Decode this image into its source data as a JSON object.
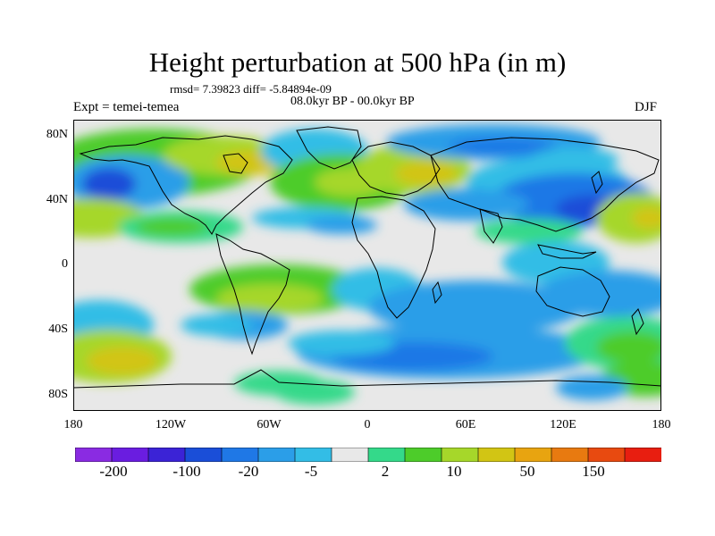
{
  "title": "Height perturbation at 500 hPa (in m)",
  "stats": "rmsd= 7.39823 diff= -5.84894e-09",
  "period": "08.0kyr BP - 00.0kyr BP",
  "expt": "Expt = temei-temea",
  "season": "DJF",
  "lat_ticks": [
    "80N",
    "40N",
    "0",
    "40S",
    "80S"
  ],
  "lon_ticks": [
    "180",
    "120W",
    "60W",
    "0",
    "60E",
    "120E",
    "180"
  ],
  "colorbar": {
    "colors": [
      "#8a2be2",
      "#6a1de0",
      "#3b23d6",
      "#1a4ed8",
      "#1f78e6",
      "#2b9ee8",
      "#33bde6",
      "#e8e8e8",
      "#34d98a",
      "#4dcc2a",
      "#a6d72a",
      "#d2c514",
      "#e8a410",
      "#e87a10",
      "#e84a10",
      "#e81e10"
    ],
    "labels": [
      "-200",
      "-100",
      "-20",
      "-5",
      "2",
      "10",
      "50",
      "150"
    ]
  },
  "colors": {
    "neutral": "#e8e8e8",
    "pale_blue": "#33bde6",
    "light_blue": "#2b9ee8",
    "blue": "#1f78e6",
    "dark_blue": "#1a4ed8",
    "teal_green": "#34d98a",
    "green": "#4dcc2a",
    "lime": "#a6d72a",
    "yellow": "#d2c514",
    "orange": "#e8a410"
  }
}
